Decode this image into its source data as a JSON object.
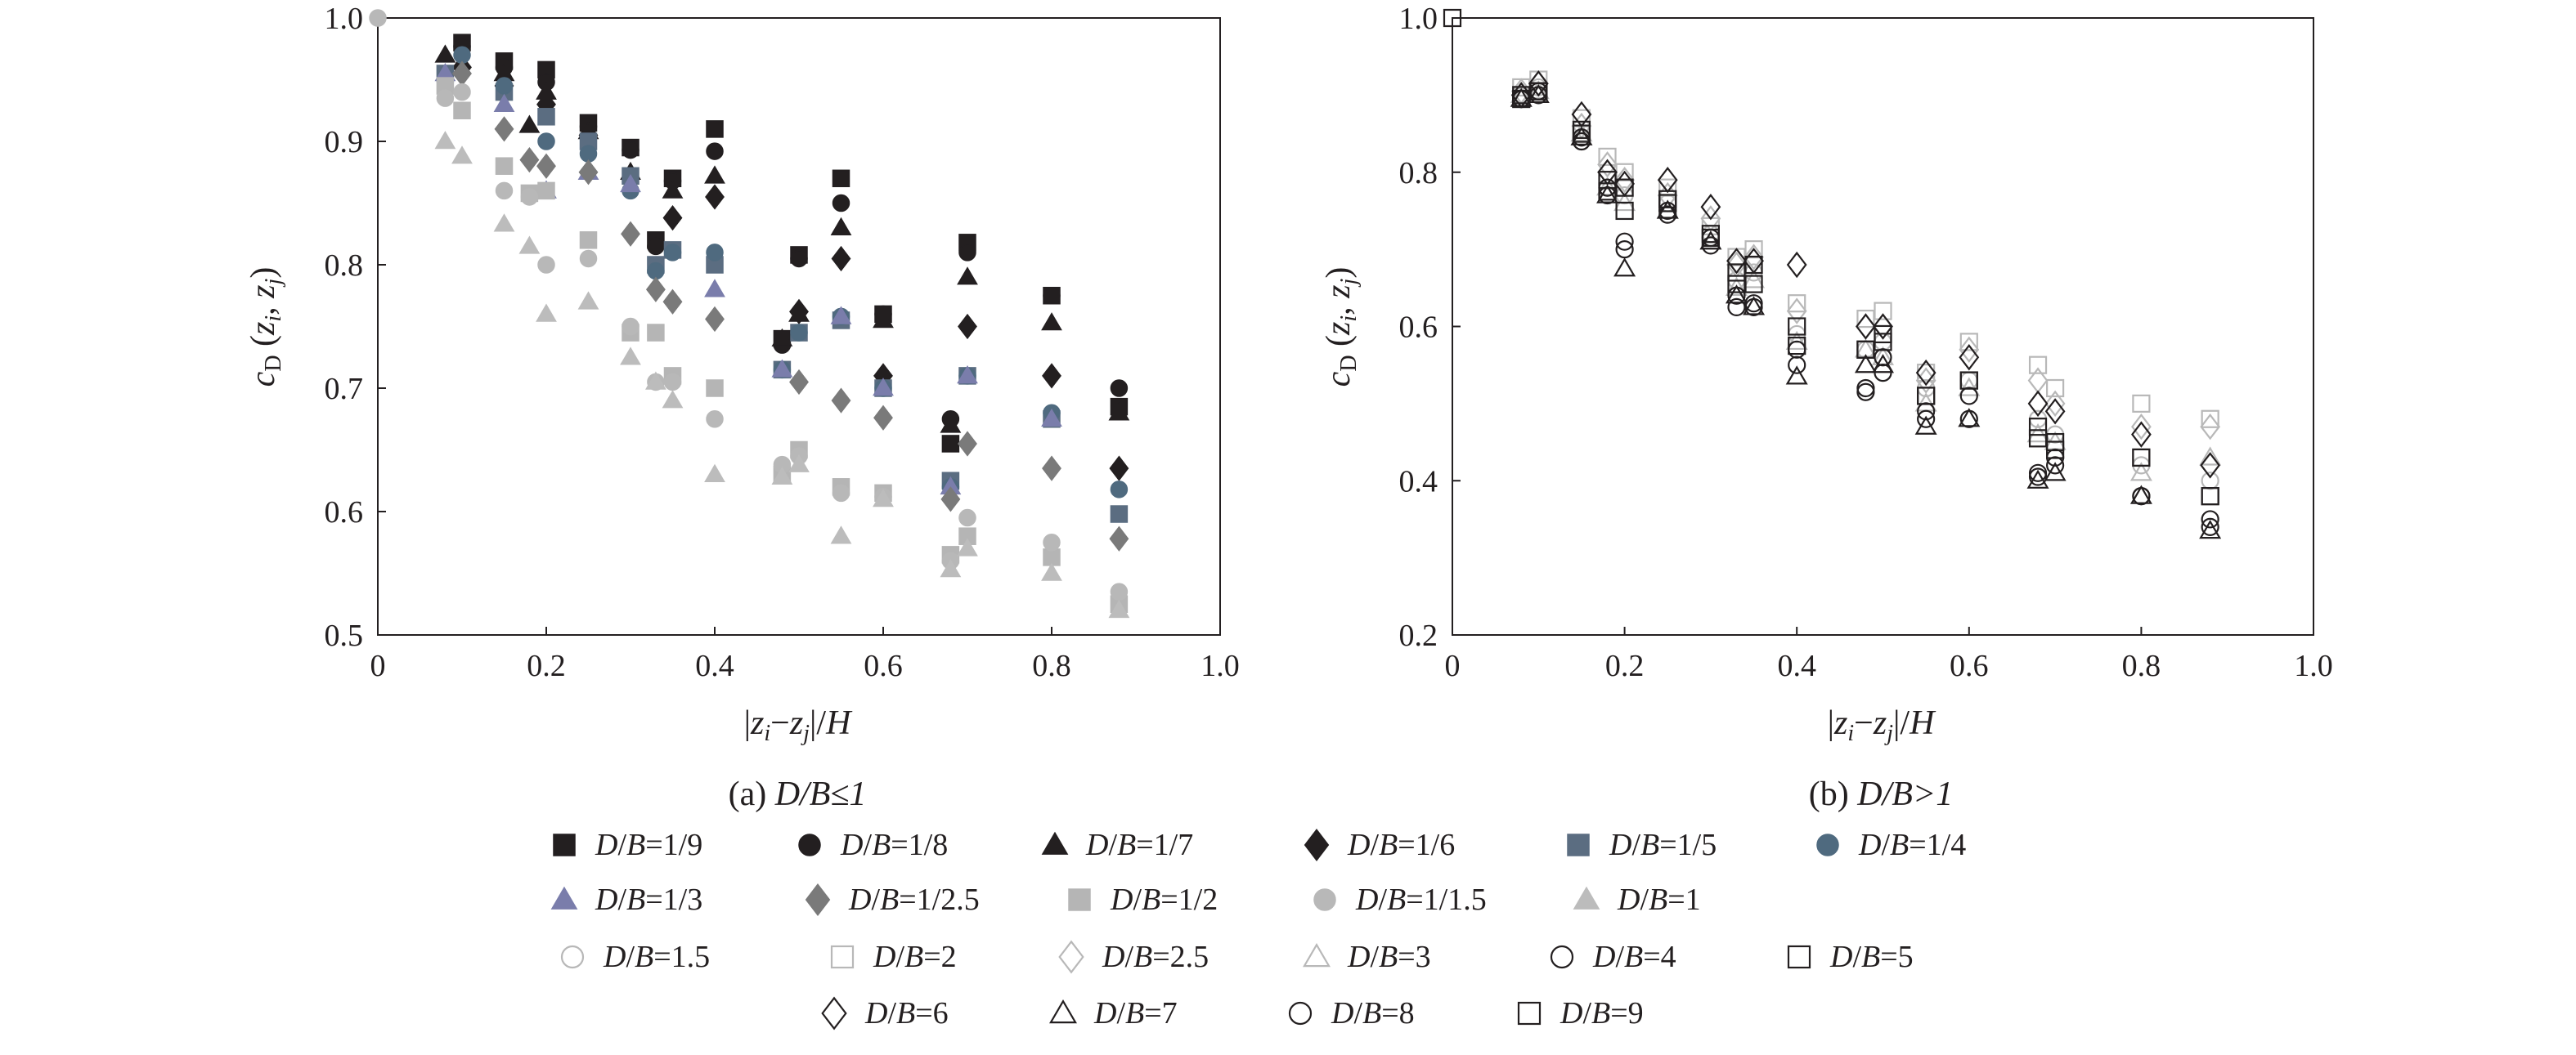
{
  "chart_data": [
    {
      "type": "scatter",
      "panel": "a",
      "caption_prefix": "(a) ",
      "caption_cond": "D/B≤1",
      "xlabel": "|zi−zj|/H",
      "ylabel": "cD (zi, zj)",
      "xlim": [
        0,
        1.0
      ],
      "ylim": [
        0.5,
        1.0
      ],
      "xticks": [
        "0",
        "0.2",
        "0.4",
        "0.6",
        "0.8",
        "1.0"
      ],
      "xtick_values": [
        0,
        0.2,
        0.4,
        0.6,
        0.8,
        1.0
      ],
      "yticks": [
        "0.5",
        "0.6",
        "0.7",
        "0.8",
        "0.9",
        "1.0"
      ],
      "ytick_values": [
        0.5,
        0.6,
        0.7,
        0.8,
        0.9,
        1.0
      ],
      "grid": false,
      "series": [
        {
          "name": "D/B=1/9",
          "marker": "square",
          "color": "#231f20",
          "filled": true,
          "x": [
            0.1,
            0.15,
            0.2,
            0.25,
            0.3,
            0.33,
            0.35,
            0.4,
            0.48,
            0.5,
            0.55,
            0.6,
            0.68,
            0.7,
            0.8,
            0.88
          ],
          "y": [
            0.98,
            0.965,
            0.958,
            0.915,
            0.895,
            0.82,
            0.87,
            0.91,
            0.74,
            0.808,
            0.87,
            0.76,
            0.655,
            0.818,
            0.775,
            0.685
          ]
        },
        {
          "name": "D/B=1/8",
          "marker": "circle",
          "color": "#231f20",
          "filled": true,
          "x": [
            0.1,
            0.15,
            0.2,
            0.25,
            0.3,
            0.33,
            0.35,
            0.4,
            0.48,
            0.5,
            0.55,
            0.6,
            0.68,
            0.7,
            0.8,
            0.88
          ],
          "y": [
            0.977,
            0.96,
            0.948,
            0.912,
            0.893,
            0.815,
            0.868,
            0.892,
            0.735,
            0.805,
            0.85,
            0.76,
            0.675,
            0.81,
            0.775,
            0.7
          ]
        },
        {
          "name": "D/B=1/7",
          "marker": "triangle",
          "color": "#231f20",
          "filled": true,
          "x": [
            0.08,
            0.15,
            0.18,
            0.2,
            0.25,
            0.3,
            0.35,
            0.4,
            0.48,
            0.5,
            0.55,
            0.6,
            0.68,
            0.7,
            0.8,
            0.88
          ],
          "y": [
            0.97,
            0.955,
            0.913,
            0.94,
            0.908,
            0.875,
            0.86,
            0.872,
            0.74,
            0.76,
            0.83,
            0.755,
            0.67,
            0.79,
            0.753,
            0.68
          ]
        },
        {
          "name": "D/B=1/6",
          "marker": "diamond",
          "color": "#231f20",
          "filled": true,
          "x": [
            0.1,
            0.15,
            0.2,
            0.25,
            0.3,
            0.35,
            0.4,
            0.5,
            0.55,
            0.6,
            0.7,
            0.8,
            0.88
          ],
          "y": [
            0.96,
            0.945,
            0.93,
            0.905,
            0.87,
            0.838,
            0.855,
            0.762,
            0.805,
            0.71,
            0.75,
            0.71,
            0.635
          ]
        },
        {
          "name": "D/B=1/5",
          "marker": "square",
          "color": "#5b6d81",
          "filled": true,
          "x": [
            0.08,
            0.15,
            0.2,
            0.25,
            0.3,
            0.33,
            0.35,
            0.4,
            0.48,
            0.5,
            0.55,
            0.6,
            0.68,
            0.7,
            0.8,
            0.88
          ],
          "y": [
            0.955,
            0.94,
            0.92,
            0.9,
            0.872,
            0.8,
            0.812,
            0.8,
            0.715,
            0.745,
            0.755,
            0.7,
            0.625,
            0.71,
            0.675,
            0.598
          ]
        },
        {
          "name": "D/B=1/4",
          "marker": "circle",
          "color": "#4f6a7f",
          "filled": true,
          "x": [
            0.1,
            0.15,
            0.2,
            0.25,
            0.3,
            0.33,
            0.35,
            0.4,
            0.48,
            0.5,
            0.55,
            0.6,
            0.68,
            0.7,
            0.8,
            0.88
          ],
          "y": [
            0.97,
            0.945,
            0.9,
            0.89,
            0.86,
            0.795,
            0.81,
            0.81,
            0.715,
            0.745,
            0.758,
            0.7,
            0.62,
            0.71,
            0.68,
            0.618
          ]
        },
        {
          "name": "D/B=1/3",
          "marker": "triangle",
          "color": "#7a7dab",
          "filled": true,
          "x": [
            0.08,
            0.15,
            0.2,
            0.25,
            0.3,
            0.4,
            0.48,
            0.55,
            0.6,
            0.68,
            0.7,
            0.8
          ],
          "y": [
            0.955,
            0.93,
            0.86,
            0.875,
            0.865,
            0.78,
            0.715,
            0.758,
            0.7,
            0.62,
            0.71,
            0.675
          ]
        },
        {
          "name": "D/B=1/2.5",
          "marker": "diamond",
          "color": "#7a7a7a",
          "filled": true,
          "x": [
            0.1,
            0.15,
            0.18,
            0.2,
            0.25,
            0.3,
            0.33,
            0.35,
            0.4,
            0.5,
            0.55,
            0.6,
            0.68,
            0.7,
            0.8,
            0.88
          ],
          "y": [
            0.955,
            0.91,
            0.885,
            0.88,
            0.875,
            0.825,
            0.78,
            0.77,
            0.756,
            0.705,
            0.69,
            0.676,
            0.61,
            0.655,
            0.635,
            0.578
          ]
        },
        {
          "name": "D/B=1/2",
          "marker": "square",
          "color": "#b5b5b5",
          "filled": true,
          "x": [
            0.08,
            0.1,
            0.15,
            0.18,
            0.2,
            0.25,
            0.3,
            0.33,
            0.35,
            0.4,
            0.48,
            0.5,
            0.55,
            0.6,
            0.68,
            0.7,
            0.8,
            0.88
          ],
          "y": [
            0.945,
            0.925,
            0.88,
            0.858,
            0.86,
            0.82,
            0.745,
            0.745,
            0.71,
            0.7,
            0.63,
            0.65,
            0.62,
            0.615,
            0.565,
            0.58,
            0.563,
            0.525
          ]
        },
        {
          "name": "D/B=1/1.5",
          "marker": "circle",
          "color": "#b8b8b8",
          "filled": true,
          "x": [
            0.0,
            0.08,
            0.1,
            0.15,
            0.18,
            0.2,
            0.25,
            0.3,
            0.33,
            0.35,
            0.4,
            0.48,
            0.5,
            0.55,
            0.6,
            0.68,
            0.7,
            0.8,
            0.88
          ],
          "y": [
            1.0,
            0.935,
            0.94,
            0.86,
            0.855,
            0.8,
            0.805,
            0.75,
            0.705,
            0.705,
            0.675,
            0.638,
            0.645,
            0.615,
            0.612,
            0.56,
            0.595,
            0.575,
            0.535
          ]
        },
        {
          "name": "D/B=1",
          "marker": "triangle",
          "color": "#bcbcbc",
          "filled": true,
          "x": [
            0.08,
            0.1,
            0.15,
            0.18,
            0.2,
            0.25,
            0.3,
            0.33,
            0.35,
            0.4,
            0.48,
            0.5,
            0.55,
            0.6,
            0.68,
            0.7,
            0.8,
            0.88
          ],
          "y": [
            0.9,
            0.888,
            0.833,
            0.815,
            0.76,
            0.77,
            0.725,
            0.705,
            0.69,
            0.63,
            0.628,
            0.638,
            0.58,
            0.61,
            0.553,
            0.57,
            0.55,
            0.52
          ]
        }
      ]
    },
    {
      "type": "scatter",
      "panel": "b",
      "caption_prefix": "(b) ",
      "caption_cond": "D/B>1",
      "xlabel": "|zi−zj|/H",
      "ylabel": "cD (zi, zj)",
      "xlim": [
        0,
        1.0
      ],
      "ylim": [
        0.2,
        1.0
      ],
      "xticks": [
        "0",
        "0.2",
        "0.4",
        "0.6",
        "0.8",
        "1.0"
      ],
      "xtick_values": [
        0,
        0.2,
        0.4,
        0.6,
        0.8,
        1.0
      ],
      "yticks": [
        "0.2",
        "0.4",
        "0.6",
        "0.8",
        "1.0"
      ],
      "ytick_values": [
        0.2,
        0.4,
        0.6,
        0.8,
        1.0
      ],
      "grid": false,
      "series": [
        {
          "name": "D/B=1.5",
          "marker": "circle",
          "color": "#b8b8b8",
          "filled": false,
          "x": [
            0.08,
            0.1,
            0.15,
            0.18,
            0.2,
            0.25,
            0.3,
            0.33,
            0.35,
            0.4,
            0.48,
            0.5,
            0.55,
            0.6,
            0.68,
            0.7,
            0.8,
            0.88
          ],
          "y": [
            0.9,
            0.91,
            0.84,
            0.78,
            0.77,
            0.76,
            0.72,
            0.66,
            0.67,
            0.59,
            0.57,
            0.58,
            0.52,
            0.53,
            0.48,
            0.46,
            0.42,
            0.4
          ]
        },
        {
          "name": "D/B=2",
          "marker": "square",
          "color": "#b8b8b8",
          "filled": false,
          "x": [
            0.08,
            0.1,
            0.15,
            0.18,
            0.2,
            0.25,
            0.3,
            0.33,
            0.35,
            0.4,
            0.48,
            0.5,
            0.55,
            0.6,
            0.68,
            0.7,
            0.8,
            0.88
          ],
          "y": [
            0.91,
            0.92,
            0.87,
            0.82,
            0.8,
            0.78,
            0.73,
            0.69,
            0.7,
            0.63,
            0.61,
            0.62,
            0.54,
            0.58,
            0.55,
            0.52,
            0.5,
            0.48
          ]
        },
        {
          "name": "D/B=2.5",
          "marker": "diamond",
          "color": "#b8b8b8",
          "filled": false,
          "x": [
            0.08,
            0.1,
            0.15,
            0.18,
            0.2,
            0.25,
            0.3,
            0.33,
            0.35,
            0.4,
            0.48,
            0.5,
            0.55,
            0.6,
            0.68,
            0.7,
            0.8,
            0.88
          ],
          "y": [
            0.905,
            0.915,
            0.86,
            0.81,
            0.79,
            0.77,
            0.74,
            0.68,
            0.69,
            0.62,
            0.6,
            0.6,
            0.53,
            0.57,
            0.53,
            0.5,
            0.47,
            0.47
          ]
        },
        {
          "name": "D/B=3",
          "marker": "triangle",
          "color": "#b8b8b8",
          "filled": false,
          "x": [
            0.08,
            0.1,
            0.15,
            0.18,
            0.2,
            0.25,
            0.3,
            0.33,
            0.35,
            0.4,
            0.48,
            0.5,
            0.55,
            0.6,
            0.68,
            0.7,
            0.8,
            0.88
          ],
          "y": [
            0.9,
            0.905,
            0.85,
            0.78,
            0.76,
            0.75,
            0.71,
            0.65,
            0.66,
            0.58,
            0.57,
            0.56,
            0.5,
            0.52,
            0.46,
            0.45,
            0.41,
            0.43
          ]
        },
        {
          "name": "D/B=4",
          "marker": "circle",
          "color": "#231f20",
          "filled": false,
          "x": [
            0.08,
            0.1,
            0.15,
            0.18,
            0.2,
            0.25,
            0.3,
            0.33,
            0.35,
            0.4,
            0.48,
            0.5,
            0.55,
            0.6,
            0.68,
            0.7,
            0.8,
            0.88
          ],
          "y": [
            0.895,
            0.905,
            0.84,
            0.77,
            0.71,
            0.745,
            0.705,
            0.64,
            0.63,
            0.55,
            0.515,
            0.54,
            0.48,
            0.51,
            0.41,
            0.42,
            0.38,
            0.35
          ]
        },
        {
          "name": "D/B=5",
          "marker": "square",
          "color": "#231f20",
          "filled": false,
          "x": [
            0.08,
            0.1,
            0.15,
            0.18,
            0.2,
            0.25,
            0.3,
            0.33,
            0.35,
            0.4,
            0.48,
            0.5,
            0.55,
            0.6,
            0.68,
            0.7,
            0.8,
            0.88
          ],
          "y": [
            0.9,
            0.905,
            0.855,
            0.79,
            0.78,
            0.765,
            0.72,
            0.67,
            0.68,
            0.6,
            0.57,
            0.59,
            0.51,
            0.53,
            0.47,
            0.45,
            0.43,
            0.38
          ]
        },
        {
          "name": "D/B=6",
          "marker": "diamond",
          "color": "#231f20",
          "filled": false,
          "x": [
            0.08,
            0.1,
            0.15,
            0.18,
            0.2,
            0.25,
            0.3,
            0.33,
            0.35,
            0.4,
            0.48,
            0.5,
            0.55,
            0.6,
            0.68,
            0.7,
            0.8,
            0.88
          ],
          "y": [
            0.9,
            0.915,
            0.875,
            0.8,
            0.785,
            0.79,
            0.755,
            0.685,
            0.685,
            0.68,
            0.6,
            0.6,
            0.54,
            0.56,
            0.5,
            0.49,
            0.46,
            0.42
          ]
        },
        {
          "name": "D/B=7",
          "marker": "triangle",
          "color": "#231f20",
          "filled": false,
          "x": [
            0.08,
            0.1,
            0.15,
            0.18,
            0.2,
            0.25,
            0.3,
            0.33,
            0.35,
            0.4,
            0.48,
            0.5,
            0.55,
            0.6,
            0.68,
            0.7,
            0.8,
            0.88
          ],
          "y": [
            0.895,
            0.9,
            0.845,
            0.77,
            0.675,
            0.75,
            0.71,
            0.64,
            0.625,
            0.535,
            0.55,
            0.55,
            0.47,
            0.48,
            0.4,
            0.41,
            0.38,
            0.335
          ]
        },
        {
          "name": "D/B=8",
          "marker": "circle",
          "color": "#231f20",
          "filled": false,
          "x": [
            0.08,
            0.1,
            0.15,
            0.18,
            0.2,
            0.25,
            0.3,
            0.33,
            0.35,
            0.4,
            0.48,
            0.5,
            0.55,
            0.6,
            0.68,
            0.7,
            0.8,
            0.88
          ],
          "y": [
            0.895,
            0.9,
            0.845,
            0.78,
            0.7,
            0.75,
            0.715,
            0.625,
            0.625,
            0.57,
            0.52,
            0.56,
            0.49,
            0.48,
            0.405,
            0.43,
            0.38,
            0.34
          ]
        },
        {
          "name": "D/B=9",
          "marker": "square",
          "color": "#231f20",
          "filled": false,
          "x": [
            0.0,
            0.08,
            0.1,
            0.15,
            0.18,
            0.2,
            0.25,
            0.3,
            0.33,
            0.35,
            0.4,
            0.48,
            0.5,
            0.55,
            0.6,
            0.68,
            0.7,
            0.8,
            0.88
          ],
          "y": [
            1.0,
            0.895,
            0.905,
            0.85,
            0.775,
            0.75,
            0.76,
            0.715,
            0.655,
            0.655,
            0.575,
            0.57,
            0.58,
            0.51,
            0.53,
            0.455,
            0.44,
            0.43,
            0.38
          ]
        }
      ]
    }
  ],
  "legend": {
    "rows": [
      [
        "D/B=1/9",
        "D/B=1/8",
        "D/B=1/7",
        "D/B=1/6",
        "D/B=1/5",
        "D/B=1/4"
      ],
      [
        "D/B=1/3",
        "D/B=1/2.5",
        "D/B=1/2",
        "D/B=1/1.5",
        "D/B=1"
      ],
      [
        "D/B=1.5",
        "D/B=2",
        "D/B=2.5",
        "D/B=3",
        "D/B=4",
        "D/B=5"
      ],
      [
        "D/B=6",
        "D/B=7",
        "D/B=8",
        "D/B=9"
      ]
    ]
  }
}
